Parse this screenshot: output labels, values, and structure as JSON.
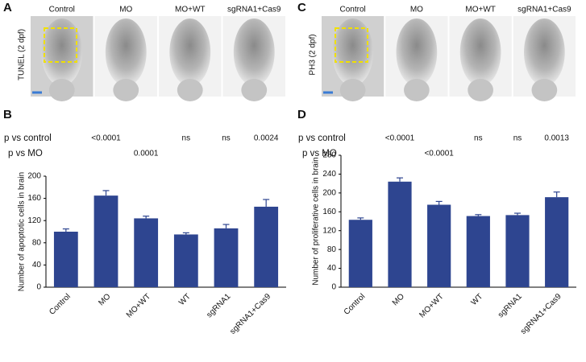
{
  "image_panels": [
    {
      "panel": "A",
      "stain": "TUNEL (2 dpf)",
      "labels": [
        "Control",
        "MO",
        "MO+WT",
        "sgRNA1+Cas9"
      ]
    },
    {
      "panel": "C",
      "stain": "PH3 (2 dpf)",
      "labels": [
        "Control",
        "MO",
        "MO+WT",
        "sgRNA1+Cas9"
      ]
    }
  ],
  "chart_data": [
    {
      "type": "bar",
      "panel": "B",
      "ylabel": "Number of apoptotic cells in brain",
      "categories": [
        "Control",
        "MO",
        "MO+WT",
        "WT",
        "sgRNA1",
        "sgRNA1+Cas9"
      ],
      "values": [
        100,
        165,
        124,
        95,
        106,
        145
      ],
      "errors": [
        5,
        9,
        4,
        3,
        7,
        13
      ],
      "color": "#2e4590",
      "ylim": [
        0,
        200
      ],
      "yticks": [
        0,
        40,
        80,
        120,
        160,
        200
      ],
      "p_values": [
        {
          "label": "p vs control",
          "values": [
            null,
            "<0.0001",
            null,
            "ns",
            "ns",
            "0.0024"
          ]
        },
        {
          "label": "p vs MO",
          "values": [
            null,
            null,
            "0.0001",
            null,
            null,
            null
          ]
        }
      ]
    },
    {
      "type": "bar",
      "panel": "D",
      "ylabel": "Number of proliferative cells in brain",
      "categories": [
        "Control",
        "MO",
        "MO+WT",
        "WT",
        "sgRNA1",
        "sgRNA1+Cas9"
      ],
      "values": [
        143,
        224,
        175,
        151,
        153,
        191
      ],
      "errors": [
        4,
        8,
        7,
        3,
        4,
        11
      ],
      "color": "#2e4590",
      "ylim": [
        0,
        280
      ],
      "yticks": [
        0,
        40,
        80,
        120,
        160,
        200,
        240,
        280
      ],
      "p_values": [
        {
          "label": "p vs control",
          "values": [
            null,
            "<0.0001",
            null,
            "ns",
            "ns",
            "0.0013"
          ]
        },
        {
          "label": "p vs MO",
          "values": [
            null,
            null,
            "<0.0001",
            null,
            null,
            null
          ]
        }
      ]
    }
  ]
}
